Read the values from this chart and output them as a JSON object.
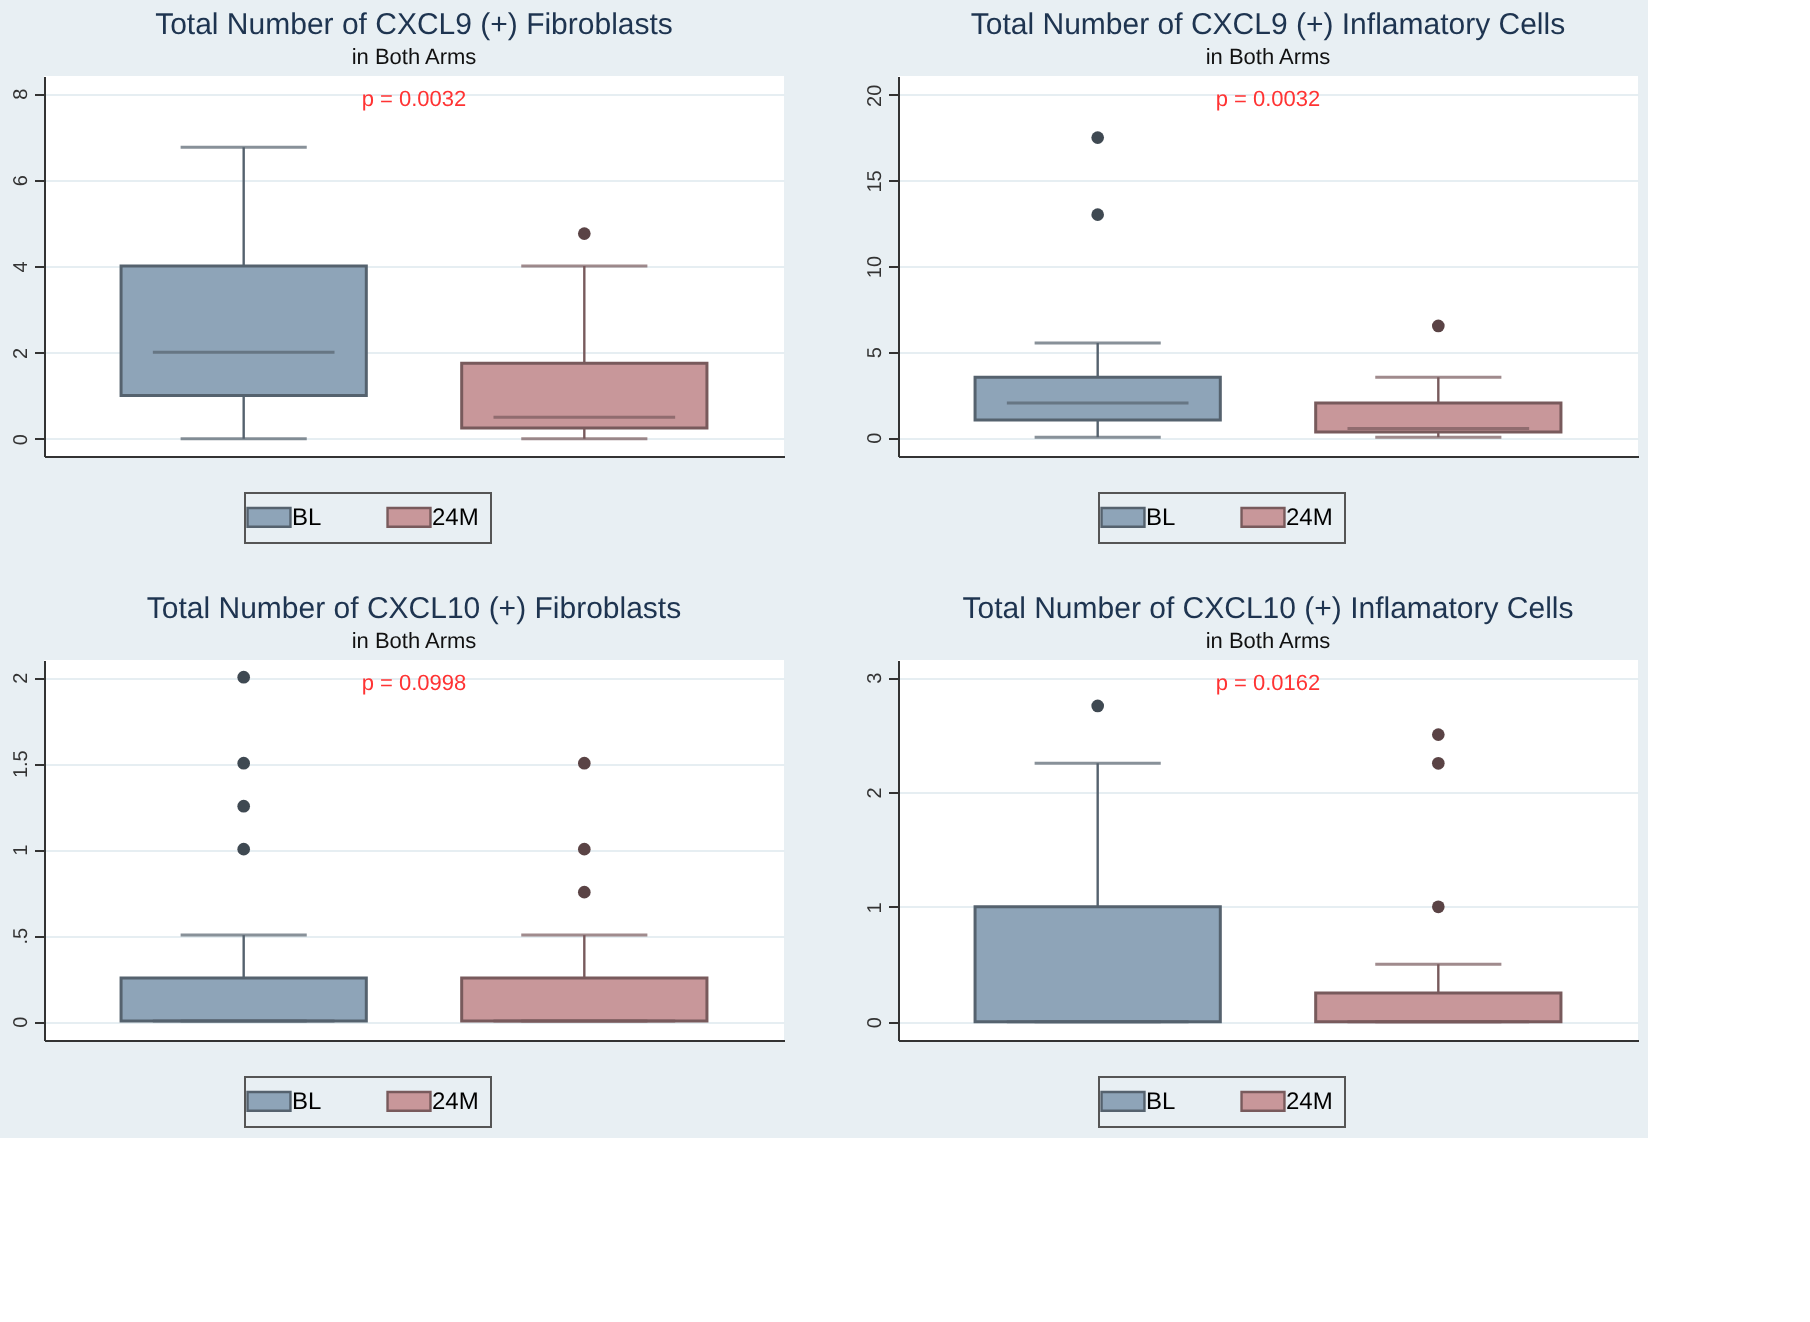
{
  "chart_data": [
    {
      "type": "box",
      "title": "Total Number of CXCL9 (+) Fibroblasts",
      "subtitle": "in Both Arms",
      "categories": [
        null
      ],
      "ylim": [
        -0.4,
        8.4
      ],
      "yticks": [
        0,
        2,
        4,
        6,
        8
      ],
      "grid": "y",
      "legend": "bottom",
      "tick_labels": "y",
      "annotations": [
        "p = 0.0032"
      ],
      "series": [
        {
          "name": "BL",
          "color": "#8ea4b8",
          "boxes": [
            {
              "low": 0,
              "q1": 1,
              "median": 2,
              "q3": 4,
              "high": 6.75
            }
          ]
        },
        {
          "name": "24M",
          "color": "#c8979a",
          "boxes": [
            {
              "low": 0,
              "q1": 0.25,
              "median": 0.5,
              "q3": 1.75,
              "high": 4,
              "outliers": [
                4.75
              ]
            }
          ]
        }
      ]
    },
    {
      "type": "box",
      "title": "Total Number of CXCL9 (+) Inflamatory Cells",
      "subtitle": "in Both Arms",
      "categories": [
        null
      ],
      "ylim": [
        -1.1,
        21.1
      ],
      "yticks": [
        0,
        5,
        10,
        15,
        20
      ],
      "grid": "y",
      "legend": "bottom",
      "tick_labels": "y",
      "annotations": [
        "p = 0.0032"
      ],
      "series": [
        {
          "name": "BL",
          "color": "#8ea4b8",
          "boxes": [
            {
              "low": 0,
              "q1": 1,
              "median": 2,
              "q3": 3.5,
              "high": 5.5,
              "outliers": [
                13,
                17.5
              ]
            }
          ]
        },
        {
          "name": "24M",
          "color": "#c8979a",
          "boxes": [
            {
              "low": 0,
              "q1": 0.3,
              "median": 0.5,
              "q3": 2,
              "high": 3.5,
              "outliers": [
                6.5
              ]
            }
          ]
        }
      ]
    },
    {
      "type": "box",
      "title": "Total Number of CXCL10 (+) Fibroblasts",
      "subtitle": "in Both Arms",
      "categories": [
        null
      ],
      "ylim": [
        -0.11,
        2.1
      ],
      "yticks": [
        0,
        {
          "value": 0.5,
          "label": ".5"
        },
        1,
        1.5,
        2
      ],
      "grid": "y",
      "legend": "bottom",
      "tick_labels": "y",
      "annotations": [
        "p = 0.0998"
      ],
      "series": [
        {
          "name": "BL",
          "color": "#8ea4b8",
          "boxes": [
            {
              "low": 0,
              "q1": 0,
              "median": 0,
              "q3": 0.25,
              "high": 0.5,
              "outliers": [
                1,
                1.25,
                1.5,
                2
              ]
            }
          ]
        },
        {
          "name": "24M",
          "color": "#c8979a",
          "boxes": [
            {
              "low": 0,
              "q1": 0,
              "median": 0,
              "q3": 0.25,
              "high": 0.5,
              "outliers": [
                0.75,
                1,
                1.5
              ]
            }
          ]
        }
      ]
    },
    {
      "type": "box",
      "title": "Total Number of CXCL10 (+) Inflamatory Cells",
      "subtitle": "in Both Arms",
      "categories": [
        null
      ],
      "ylim": [
        -0.16,
        3.15
      ],
      "yticks": [
        0,
        1,
        2,
        3
      ],
      "grid": "y",
      "legend": "bottom",
      "tick_labels": "y",
      "annotations": [
        "p = 0.0162"
      ],
      "series": [
        {
          "name": "BL",
          "color": "#8ea4b8",
          "boxes": [
            {
              "low": 0,
              "q1": 0,
              "median": 0,
              "q3": 1,
              "high": 2.25,
              "outliers": [
                2.75
              ]
            }
          ]
        },
        {
          "name": "24M",
          "color": "#c8979a",
          "boxes": [
            {
              "low": 0,
              "q1": 0,
              "median": 0,
              "q3": 0.25,
              "high": 0.5,
              "outliers": [
                1,
                2.25,
                2.5
              ]
            }
          ]
        }
      ]
    }
  ]
}
